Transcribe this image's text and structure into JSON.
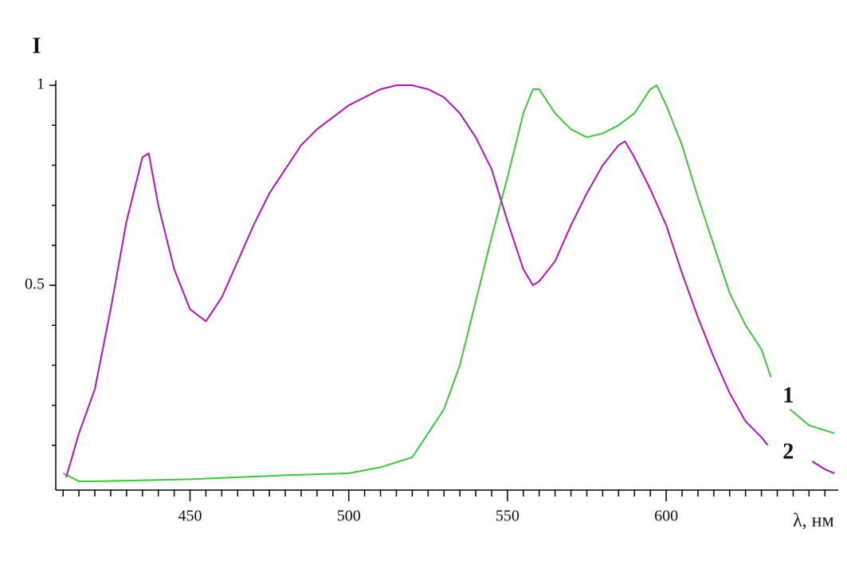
{
  "chart_data": {
    "type": "line",
    "ylabel": "I",
    "xlabel": "λ, нм",
    "xlim": [
      407.7,
      654.2
    ],
    "xticks": [
      450,
      500,
      550,
      600
    ],
    "xminor": [
      410,
      415,
      420,
      425,
      430,
      435,
      440,
      445,
      455,
      460,
      465,
      470,
      475,
      480,
      485,
      490,
      495,
      505,
      510,
      515,
      520,
      525,
      530,
      535,
      540,
      545,
      555,
      560,
      565,
      570,
      575,
      580,
      585,
      590,
      595,
      605,
      610,
      615,
      620,
      625,
      630,
      635,
      640,
      645,
      650
    ],
    "ylim": [
      -0.012,
      1.012
    ],
    "yticks": [
      0.5,
      1
    ],
    "yminor": [
      0.1,
      0.2,
      0.3,
      0.4,
      0.6,
      0.7,
      0.8,
      0.9
    ],
    "series": [
      {
        "name": "1",
        "color": "#3cc43c",
        "x": [
          410,
          415,
          420,
          450,
          480,
          500,
          510,
          520,
          525,
          530,
          535,
          540,
          545,
          550,
          555,
          558,
          560,
          565,
          570,
          575,
          580,
          585,
          590,
          595,
          597,
          600,
          605,
          610,
          615,
          620,
          625,
          630,
          633,
          636,
          639,
          645,
          653
        ],
        "values": [
          0.03,
          0.01,
          0.01,
          0.015,
          0.025,
          0.03,
          0.045,
          0.07,
          0.13,
          0.19,
          0.3,
          0.46,
          0.62,
          0.77,
          0.93,
          0.99,
          0.99,
          0.93,
          0.89,
          0.87,
          0.88,
          0.9,
          0.93,
          0.99,
          1.0,
          0.95,
          0.85,
          0.72,
          0.6,
          0.48,
          0.4,
          0.34,
          0.27,
          null,
          0.19,
          0.15,
          0.13
        ]
      },
      {
        "name": "2",
        "color": "#b012b8",
        "x": [
          411,
          415,
          420,
          425,
          430,
          435,
          437,
          440,
          445,
          450,
          455,
          460,
          465,
          470,
          475,
          480,
          485,
          490,
          495,
          500,
          505,
          510,
          515,
          520,
          525,
          530,
          535,
          540,
          545,
          550,
          555,
          558,
          560,
          565,
          570,
          575,
          580,
          585,
          587,
          590,
          595,
          600,
          605,
          610,
          615,
          620,
          625,
          630,
          632,
          639,
          646,
          650,
          653
        ],
        "values": [
          0.02,
          0.13,
          0.24,
          0.44,
          0.66,
          0.82,
          0.83,
          0.7,
          0.54,
          0.44,
          0.41,
          0.47,
          0.56,
          0.65,
          0.73,
          0.79,
          0.85,
          0.89,
          0.92,
          0.95,
          0.97,
          0.99,
          1.0,
          1.0,
          0.99,
          0.97,
          0.93,
          0.87,
          0.79,
          0.66,
          0.54,
          0.5,
          0.51,
          0.56,
          0.65,
          0.73,
          0.8,
          0.85,
          0.86,
          0.82,
          0.74,
          0.65,
          0.53,
          0.42,
          0.32,
          0.23,
          0.16,
          0.12,
          0.1,
          null,
          0.06,
          0.04,
          0.03
        ]
      }
    ]
  }
}
